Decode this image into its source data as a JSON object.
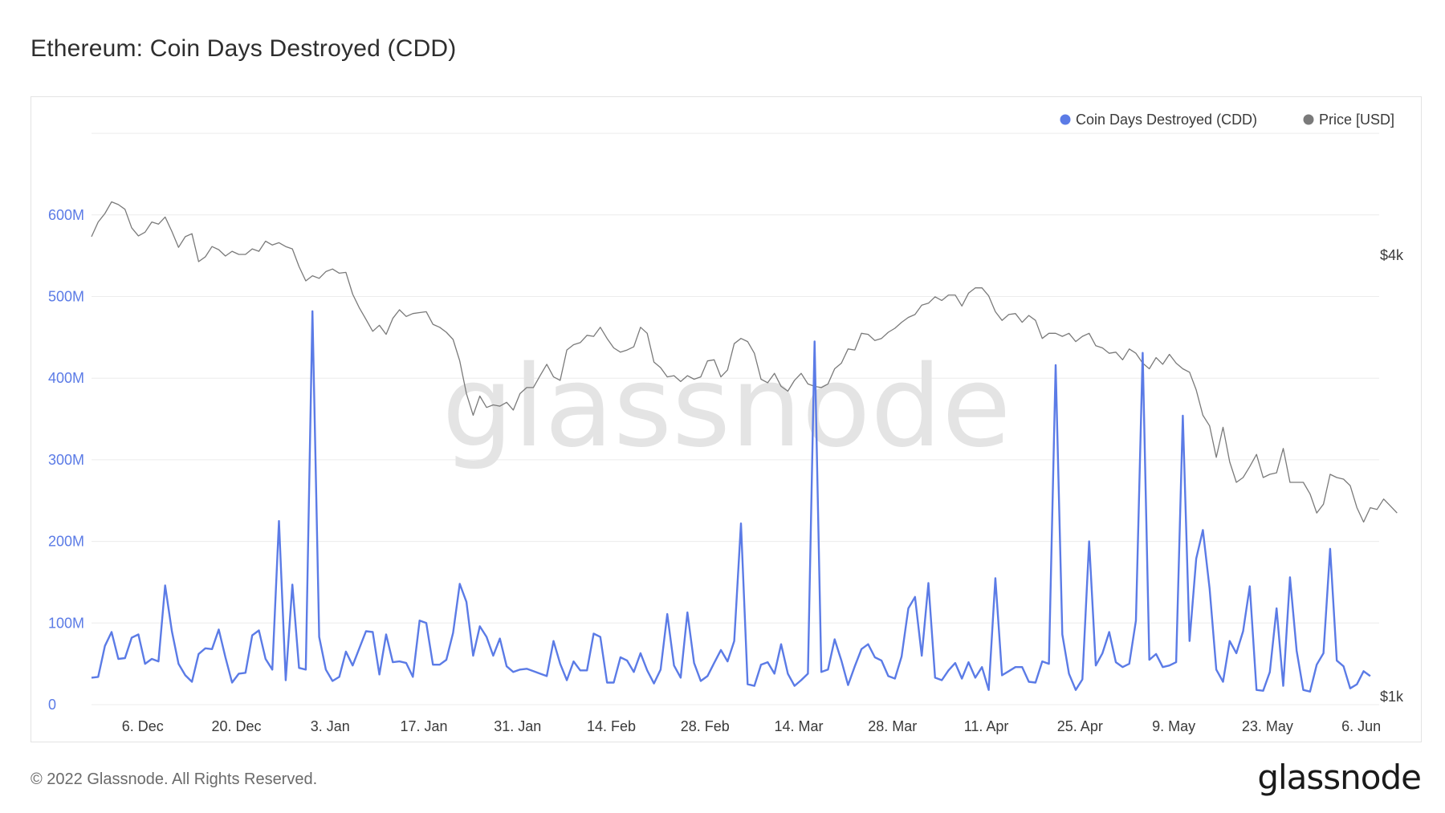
{
  "title": "Ethereum: Coin Days Destroyed (CDD)",
  "footer": {
    "copyright": "© 2022 Glassnode. All Rights Reserved.",
    "logo": "glassnode"
  },
  "watermark": "glassnode",
  "colors": {
    "cdd": "#5b7be6",
    "price": "#7a7a7a",
    "grid": "#ececec",
    "left_axis": "#5b7be6"
  },
  "chart_data": {
    "type": "line",
    "title": "Ethereum: Coin Days Destroyed (CDD)",
    "legend_placement": "top-right",
    "grid": true,
    "x_start_date": "2021-11-28",
    "x_ticks": [
      "6. Dec",
      "20. Dec",
      "3. Jan",
      "17. Jan",
      "31. Jan",
      "14. Feb",
      "28. Feb",
      "14. Mar",
      "28. Mar",
      "11. Apr",
      "25. Apr",
      "9. May",
      "23. May",
      "6. Jun"
    ],
    "y_left": {
      "ticks": [
        "0",
        "100M",
        "200M",
        "300M",
        "400M",
        "500M",
        "600M"
      ],
      "ylim": [
        0,
        700
      ]
    },
    "y_right": {
      "ticks": [
        "$1k",
        "$4k"
      ],
      "scale": "log",
      "ylim": [
        1000,
        5600
      ]
    },
    "series": [
      {
        "name": "Coin Days Destroyed (CDD)",
        "axis": "left",
        "values": [
          33,
          34,
          72,
          89,
          56,
          57,
          82,
          86,
          50,
          56,
          53,
          146,
          90,
          50,
          36,
          28,
          62,
          69,
          68,
          92,
          58,
          27,
          38,
          39,
          85,
          91,
          56,
          43,
          225,
          30,
          147,
          45,
          43,
          482,
          83,
          43,
          29,
          34,
          65,
          48,
          69,
          90,
          89,
          37,
          86,
          52,
          53,
          51,
          34,
          103,
          100,
          49,
          49,
          55,
          88,
          148,
          126,
          60,
          96,
          83,
          60,
          81,
          47,
          40,
          43,
          44,
          41,
          38,
          35,
          78,
          50,
          30,
          53,
          42,
          42,
          87,
          83,
          27,
          27,
          58,
          54,
          40,
          63,
          42,
          26,
          43,
          111,
          48,
          33,
          113,
          51,
          29,
          35,
          51,
          67,
          53,
          78,
          222,
          25,
          23,
          49,
          52,
          38,
          74,
          38,
          23,
          30,
          38,
          445,
          40,
          43,
          80,
          54,
          24,
          47,
          68,
          74,
          58,
          54,
          35,
          32,
          59,
          118,
          132,
          60,
          149,
          33,
          30,
          42,
          51,
          32,
          52,
          33,
          46,
          18,
          155,
          36,
          41,
          46,
          46,
          28,
          27,
          53,
          50,
          416,
          86,
          38,
          18,
          31,
          200,
          48,
          63,
          89,
          52,
          46,
          50,
          103,
          431,
          55,
          62,
          46,
          48,
          52,
          354,
          78,
          179,
          214,
          142,
          43,
          28,
          78,
          63,
          90,
          145,
          18,
          17,
          40,
          118,
          23,
          156,
          66,
          18,
          16,
          49,
          63,
          191,
          54,
          47,
          20,
          25,
          41,
          35
        ],
        "unit": "M"
      },
      {
        "name": "Price [USD]",
        "axis": "right",
        "values": [
          4240,
          4440,
          4560,
          4730,
          4690,
          4620,
          4360,
          4250,
          4300,
          4440,
          4410,
          4510,
          4310,
          4100,
          4240,
          4280,
          3920,
          3980,
          4110,
          4070,
          3990,
          4050,
          4010,
          4010,
          4080,
          4050,
          4180,
          4130,
          4160,
          4110,
          4080,
          3860,
          3690,
          3750,
          3720,
          3800,
          3830,
          3780,
          3790,
          3540,
          3390,
          3270,
          3150,
          3210,
          3120,
          3280,
          3370,
          3300,
          3330,
          3340,
          3350,
          3220,
          3190,
          3140,
          3070,
          2870,
          2590,
          2420,
          2570,
          2480,
          2500,
          2490,
          2520,
          2460,
          2590,
          2640,
          2640,
          2740,
          2840,
          2730,
          2700,
          2970,
          3020,
          3040,
          3110,
          3100,
          3190,
          3080,
          2990,
          2950,
          2970,
          3000,
          3190,
          3130,
          2860,
          2810,
          2730,
          2740,
          2690,
          2740,
          2710,
          2730,
          2870,
          2880,
          2730,
          2790,
          3030,
          3080,
          3050,
          2940,
          2710,
          2680,
          2760,
          2650,
          2610,
          2700,
          2760,
          2670,
          2650,
          2640,
          2670,
          2800,
          2850,
          2980,
          2970,
          3130,
          3120,
          3060,
          3080,
          3140,
          3180,
          3240,
          3290,
          3320,
          3420,
          3440,
          3510,
          3470,
          3530,
          3530,
          3410,
          3550,
          3610,
          3610,
          3520,
          3350,
          3260,
          3320,
          3330,
          3240,
          3310,
          3260,
          3080,
          3130,
          3130,
          3100,
          3130,
          3050,
          3100,
          3130,
          3010,
          2990,
          2940,
          2950,
          2880,
          2980,
          2940,
          2850,
          2800,
          2900,
          2840,
          2930,
          2850,
          2800,
          2770,
          2620,
          2420,
          2340,
          2120,
          2330,
          2090,
          1960,
          1990,
          2060,
          2140,
          1990,
          2010,
          2020,
          2180,
          1960,
          1960,
          1960,
          1890,
          1780,
          1830,
          2010,
          1990,
          1980,
          1940,
          1810,
          1730,
          1810,
          1800,
          1860,
          1820,
          1780
        ]
      }
    ]
  }
}
